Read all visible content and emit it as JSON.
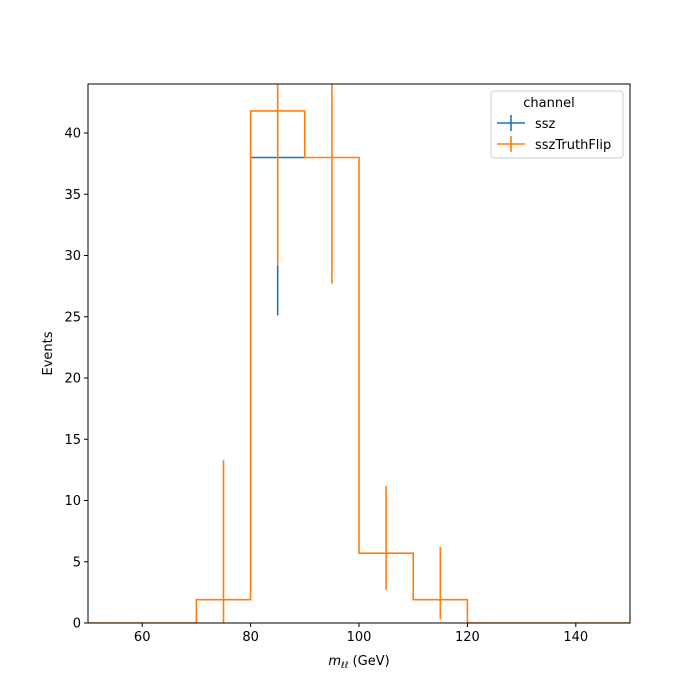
{
  "chart_data": {
    "type": "histogram-step",
    "xlabel_main": "m",
    "xlabel_sub": "ℓℓ",
    "xlabel_unit": " (GeV)",
    "ylabel": "Events",
    "xlim": [
      50,
      150
    ],
    "ylim": [
      0,
      44
    ],
    "xticks": [
      60,
      80,
      100,
      120,
      140
    ],
    "yticks": [
      0,
      5,
      10,
      15,
      20,
      25,
      30,
      35,
      40
    ],
    "grid": false,
    "legend": {
      "title": "channel",
      "placement": "top-right"
    },
    "bin_edges": [
      50,
      60,
      70,
      80,
      90,
      100,
      110,
      120,
      130,
      140,
      150
    ],
    "series": [
      {
        "name": "ssz",
        "color": "#1f77b4",
        "values": [
          0,
          0,
          0,
          38.0,
          0,
          0,
          0,
          0,
          0,
          0
        ],
        "errors": [
          0,
          0,
          0,
          0,
          0,
          0,
          0,
          0,
          0,
          0
        ],
        "error_bars": [
          {
            "x": 85,
            "low": 25.1,
            "high": 29.2
          }
        ]
      },
      {
        "name": "sszTruthFlip",
        "color": "#ff7f0e",
        "values": [
          0,
          0,
          1.9,
          41.8,
          38.0,
          5.7,
          1.9,
          0,
          0,
          0
        ],
        "error_bars": [
          {
            "x": 75,
            "low": 0,
            "high": 13.3
          },
          {
            "x": 85,
            "low": 29.2,
            "high": 44
          },
          {
            "x": 95,
            "low": 27.7,
            "high": 44
          },
          {
            "x": 105,
            "low": 2.7,
            "high": 11.2
          },
          {
            "x": 115,
            "low": 0.3,
            "high": 6.2
          }
        ]
      }
    ]
  }
}
